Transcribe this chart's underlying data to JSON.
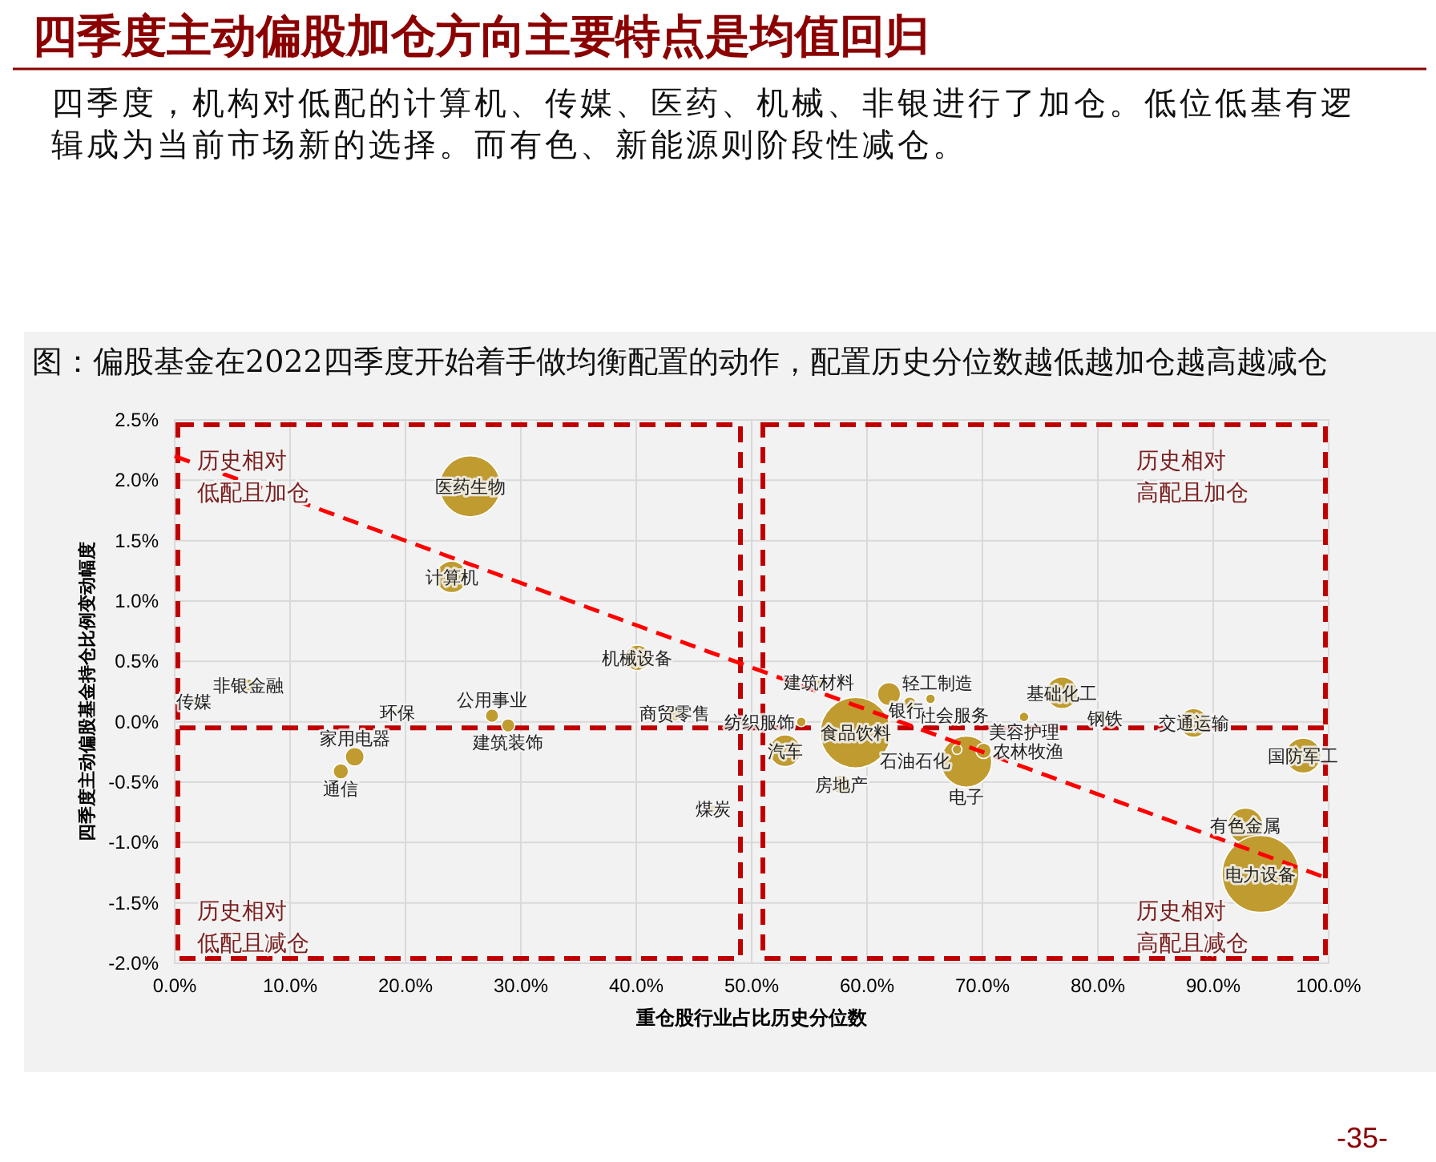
{
  "chart_data": {
    "type": "bubble",
    "title": "四季度主动偏股加仓方向主要特点是均值回归",
    "subtitle": "四季度，机构对低配的计算机、传媒、医药、机械、非银进行了加仓。低位低基有逻辑成为当前市场新的选择。而有色、新能源则阶段性减仓。",
    "xlabel": "重仓股行业占比历史分位数",
    "ylabel": "四季度主动偏股基金持仓比例变动幅度",
    "annotations": [
      "图：偏股基金在2022四季度开始着手做均衡配置的动作，配置历史分位数越低越加仓越高越减仓",
      "历史相对低配且加仓",
      "历史相对高配且加仓",
      "历史相对低配且减仓",
      "历史相对高配且减仓",
      "-35-"
    ],
    "color": "#bf9b30",
    "series": [
      {
        "name": "医药生物",
        "x": [
          25.6
        ],
        "values": [
          1.95
        ],
        "sizes": [
          0.63
        ]
      },
      {
        "name": "计算机",
        "x": [
          24.0
        ],
        "values": [
          1.2
        ],
        "sizes": [
          0.17
        ]
      },
      {
        "name": "机械设备",
        "x": [
          40.1
        ],
        "values": [
          0.53
        ],
        "sizes": [
          0.11
        ]
      },
      {
        "name": "非银金融",
        "x": [
          6.4
        ],
        "values": [
          0.3
        ],
        "sizes": [
          0.03
        ]
      },
      {
        "name": "传媒",
        "x": [
          1.7
        ],
        "values": [
          0.17
        ],
        "sizes": [
          0.016
        ]
      },
      {
        "name": "环保",
        "x": [
          19.3
        ],
        "values": [
          0.08
        ],
        "sizes": [
          0.007
        ]
      },
      {
        "name": "公用事业",
        "x": [
          27.5
        ],
        "values": [
          0.05
        ],
        "sizes": [
          0.03
        ]
      },
      {
        "name": "建筑装饰",
        "x": [
          28.9
        ],
        "values": [
          -0.03
        ],
        "sizes": [
          0.03
        ]
      },
      {
        "name": "商贸零售",
        "x": [
          43.3
        ],
        "values": [
          0.07
        ],
        "sizes": [
          0.04
        ]
      },
      {
        "name": "家用电器",
        "x": [
          15.6
        ],
        "values": [
          -0.29
        ],
        "sizes": [
          0.06
        ]
      },
      {
        "name": "通信",
        "x": [
          14.4
        ],
        "values": [
          -0.41
        ],
        "sizes": [
          0.04
        ]
      },
      {
        "name": "煤炭",
        "x": [
          46.7
        ],
        "values": [
          -0.72
        ],
        "sizes": [
          0.016
        ]
      },
      {
        "name": "建筑材料",
        "x": [
          55.8
        ],
        "values": [
          0.33
        ],
        "sizes": [
          0.016
        ]
      },
      {
        "name": "轻工制造",
        "x": [
          61.9
        ],
        "values": [
          0.23
        ],
        "sizes": [
          0.09
        ]
      },
      {
        "name": "社会服务",
        "x": [
          63.7
        ],
        "values": [
          0.15
        ],
        "sizes": [
          0.03
        ]
      },
      {
        "name": "银行",
        "x": [
          65.5
        ],
        "values": [
          0.19
        ],
        "sizes": [
          0.016
        ]
      },
      {
        "name": "纺织服饰",
        "x": [
          54.3
        ],
        "values": [
          0.0
        ],
        "sizes": [
          0.016
        ]
      },
      {
        "name": "食品饮料",
        "x": [
          59.0
        ],
        "values": [
          -0.09
        ],
        "sizes": [
          0.84
        ]
      },
      {
        "name": "汽车",
        "x": [
          52.9
        ],
        "values": [
          -0.24
        ],
        "sizes": [
          0.17
        ]
      },
      {
        "name": "房地产",
        "x": [
          57.8
        ],
        "values": [
          -0.52
        ],
        "sizes": [
          0.06
        ]
      },
      {
        "name": "电子",
        "x": [
          68.6
        ],
        "values": [
          -0.33
        ],
        "sizes": [
          0.44
        ]
      },
      {
        "name": "石油石化",
        "x": [
          67.8
        ],
        "values": [
          -0.23
        ],
        "sizes": [
          0.016
        ]
      },
      {
        "name": "农林牧渔",
        "x": [
          70.1
        ],
        "values": [
          -0.24
        ],
        "sizes": [
          0.04
        ]
      },
      {
        "name": "美容护理",
        "x": [
          73.6
        ],
        "values": [
          0.04
        ],
        "sizes": [
          0.016
        ]
      },
      {
        "name": "基础化工",
        "x": [
          76.9
        ],
        "values": [
          0.24
        ],
        "sizes": [
          0.17
        ]
      },
      {
        "name": "钢铁",
        "x": [
          80.6
        ],
        "values": [
          0.03
        ],
        "sizes": [
          0.016
        ]
      },
      {
        "name": "交通运输",
        "x": [
          88.3
        ],
        "values": [
          -0.01
        ],
        "sizes": [
          0.14
        ]
      },
      {
        "name": "国防军工",
        "x": [
          97.8
        ],
        "values": [
          -0.28
        ],
        "sizes": [
          0.21
        ]
      },
      {
        "name": "有色金属",
        "x": [
          92.8
        ],
        "values": [
          -0.86
        ],
        "sizes": [
          0.21
        ]
      },
      {
        "name": "电力设备",
        "x": [
          94.1
        ],
        "values": [
          -1.26
        ],
        "sizes": [
          1
        ]
      },
      {
        "type": "line",
        "x": [
          0,
          100
        ],
        "values": [
          2.2,
          -1.3
        ],
        "color": "#ff0000",
        "line_style": "dashed"
      }
    ],
    "ref_lines": [
      {
        "axis": "y",
        "value": -0.05,
        "color": "#c00000",
        "line_style": "dashed"
      }
    ],
    "xlim": [
      0,
      100
    ],
    "xticks": [
      {
        "value": 0,
        "label": "0.0%"
      },
      {
        "value": 10,
        "label": "10.0%"
      },
      {
        "value": 20,
        "label": "20.0%"
      },
      {
        "value": 30,
        "label": "30.0%"
      },
      {
        "value": 40,
        "label": "40.0%"
      },
      {
        "value": 50,
        "label": "50.0%"
      },
      {
        "value": 60,
        "label": "60.0%"
      },
      {
        "value": 70,
        "label": "70.0%"
      },
      {
        "value": 80,
        "label": "80.0%"
      },
      {
        "value": 90,
        "label": "90.0%"
      },
      {
        "value": 100,
        "label": "100.0%"
      }
    ],
    "ylim": [
      -2,
      2.5
    ],
    "yticks": [
      {
        "value": -2,
        "label": "-2.0%"
      },
      {
        "value": -1.5,
        "label": "-1.5%"
      },
      {
        "value": -1,
        "label": "-1.0%"
      },
      {
        "value": -0.5,
        "label": "-0.5%"
      },
      {
        "value": 0,
        "label": "0.0%"
      },
      {
        "value": 0.5,
        "label": "0.5%"
      },
      {
        "value": 1,
        "label": "1.0%"
      },
      {
        "value": 1.5,
        "label": "1.5%"
      },
      {
        "value": 2,
        "label": "2.0%"
      },
      {
        "value": 2.5,
        "label": "2.5%"
      }
    ],
    "grid": true
  }
}
